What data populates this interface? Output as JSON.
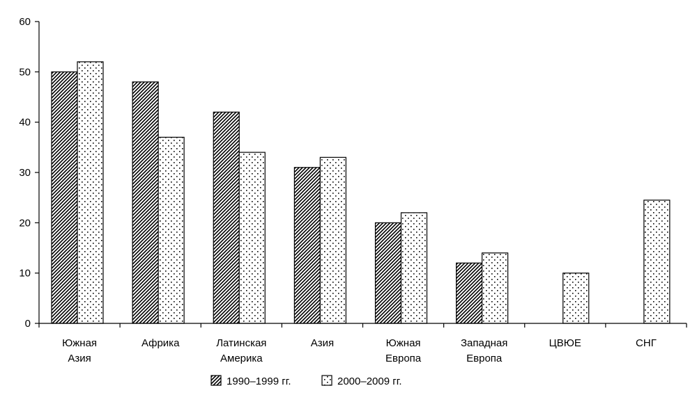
{
  "chart_data": {
    "type": "bar",
    "categories": [
      [
        "Южная",
        "Азия"
      ],
      [
        "Африка"
      ],
      [
        "Латинская",
        "Америка"
      ],
      [
        "Азия"
      ],
      [
        "Южная",
        "Европа"
      ],
      [
        "Западная",
        "Европа"
      ],
      [
        "ЦВЮЕ"
      ],
      [
        "СНГ"
      ]
    ],
    "series": [
      {
        "name": "1990–1999 гг.",
        "pattern": "diagonal-hatch",
        "values": [
          50,
          48,
          42,
          31,
          20,
          12,
          null,
          null
        ]
      },
      {
        "name": "2000–2009 гг.",
        "pattern": "dotted",
        "values": [
          52,
          37,
          34,
          33,
          22,
          14,
          10,
          24.5
        ]
      }
    ],
    "ylim": [
      0,
      60
    ],
    "yticks": [
      0,
      10,
      20,
      30,
      40,
      50,
      60
    ],
    "grid": false,
    "legend_position": "bottom"
  }
}
